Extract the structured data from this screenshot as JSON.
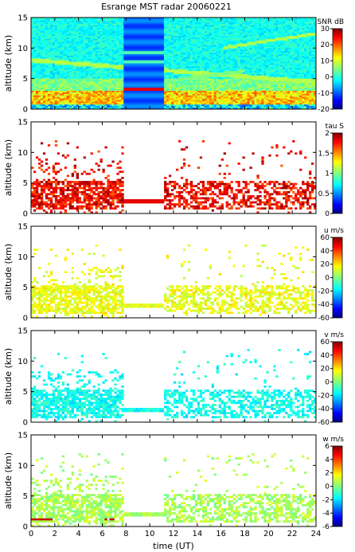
{
  "title": "Esrange MST radar 20060221",
  "chart_data": {
    "type": "heatmap",
    "title": "Esrange MST radar 20060221",
    "xlabel": "time (UT)",
    "xlim": [
      0,
      24
    ],
    "xticks": [
      0,
      2,
      4,
      6,
      8,
      10,
      12,
      14,
      16,
      18,
      20,
      22,
      24
    ],
    "panels": [
      {
        "ylabel": "altitude (km)",
        "ylim": [
          0,
          15
        ],
        "yticks": [
          0,
          5,
          10,
          15
        ],
        "colorbar": {
          "label": "SNR dB",
          "range": [
            -20,
            30
          ],
          "ticks": [
            -20,
            -10,
            0,
            10,
            20,
            30
          ]
        },
        "description": "dense SNR field"
      },
      {
        "ylabel": "altitude (km)",
        "ylim": [
          0,
          15
        ],
        "yticks": [
          0,
          5,
          10,
          15
        ],
        "colorbar": {
          "label": "tau S",
          "range": [
            0,
            2
          ],
          "ticks": [
            0,
            0.5,
            1,
            1.5,
            2
          ]
        },
        "description": "sparse"
      },
      {
        "ylabel": "altitude (km)",
        "ylim": [
          0,
          15
        ],
        "yticks": [
          0,
          5,
          10,
          15
        ],
        "colorbar": {
          "label": "u m/s",
          "range": [
            -60,
            60
          ],
          "ticks": [
            -60,
            -40,
            -20,
            0,
            20,
            40,
            60
          ]
        },
        "description": "sparse"
      },
      {
        "ylabel": "altitude (km)",
        "ylim": [
          0,
          15
        ],
        "yticks": [
          0,
          5,
          10,
          15
        ],
        "colorbar": {
          "label": "v m/s",
          "range": [
            -60,
            60
          ],
          "ticks": [
            -60,
            -40,
            -20,
            0,
            20,
            40,
            60
          ]
        },
        "description": "sparse"
      },
      {
        "ylabel": "altitude (km)",
        "ylim": [
          0,
          15
        ],
        "yticks": [
          0,
          5,
          10,
          15
        ],
        "colorbar": {
          "label": "w m/s",
          "range": [
            -6,
            6
          ],
          "ticks": [
            -6,
            -4,
            -2,
            0,
            2,
            4,
            6
          ]
        },
        "description": "sparse"
      }
    ]
  }
}
